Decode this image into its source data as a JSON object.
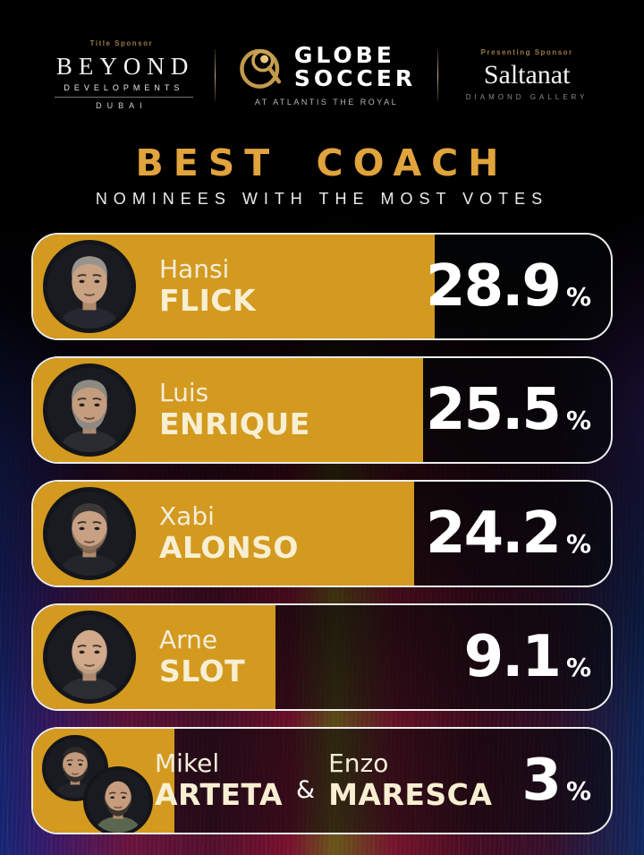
{
  "header": {
    "title_sponsor": {
      "label": "Title Sponsor",
      "name": "BEYOND",
      "sub": "DEVELOPMENTS",
      "city": "DUBAI"
    },
    "globe": {
      "line1": "GLOBE",
      "line2": "SOCCER",
      "tagline": "AT ATLANTIS THE ROYAL"
    },
    "presenting_sponsor": {
      "label": "Presenting Sponsor",
      "name": "Saltanat",
      "sub": "DIAMOND GALLERY"
    }
  },
  "title": "BEST COACH",
  "subtitle": "NOMINEES WITH THE MOST VOTES",
  "colors": {
    "bar_gold": "#D39A1F",
    "title_gold": "#E1A33C",
    "name_cream": "#F8EFD2",
    "row_border": "#FFFFFF"
  },
  "rows": [
    {
      "first": "Hansi",
      "last": "FLICK",
      "value": "28.9",
      "unit": "%",
      "bar_pct": 69.5
    },
    {
      "first": "Luis",
      "last": "ENRIQUE",
      "value": "25.5",
      "unit": "%",
      "bar_pct": 67.5
    },
    {
      "first": "Xabi",
      "last": "ALONSO",
      "value": "24.2",
      "unit": "%",
      "bar_pct": 66
    },
    {
      "first": "Arne",
      "last": "SLOT",
      "value": "9.1",
      "unit": "%",
      "bar_pct": 42
    },
    {
      "first": "Mikel",
      "last": "ARTETA",
      "amp": "&",
      "first2": "Enzo",
      "last2": "MARESCA",
      "value": "3",
      "unit": "%",
      "bar_pct": 24.5
    }
  ],
  "chart_data": {
    "type": "bar",
    "orientation": "horizontal",
    "title": "BEST COACH",
    "subtitle": "NOMINEES WITH THE MOST VOTES",
    "categories": [
      "Hansi Flick",
      "Luis Enrique",
      "Xabi Alonso",
      "Arne Slot",
      "Mikel Arteta & Enzo Maresca"
    ],
    "values": [
      28.9,
      25.5,
      24.2,
      9.1,
      3
    ],
    "unit": "%",
    "bar_color": "#D39A1F",
    "legend": false,
    "grid": false
  }
}
